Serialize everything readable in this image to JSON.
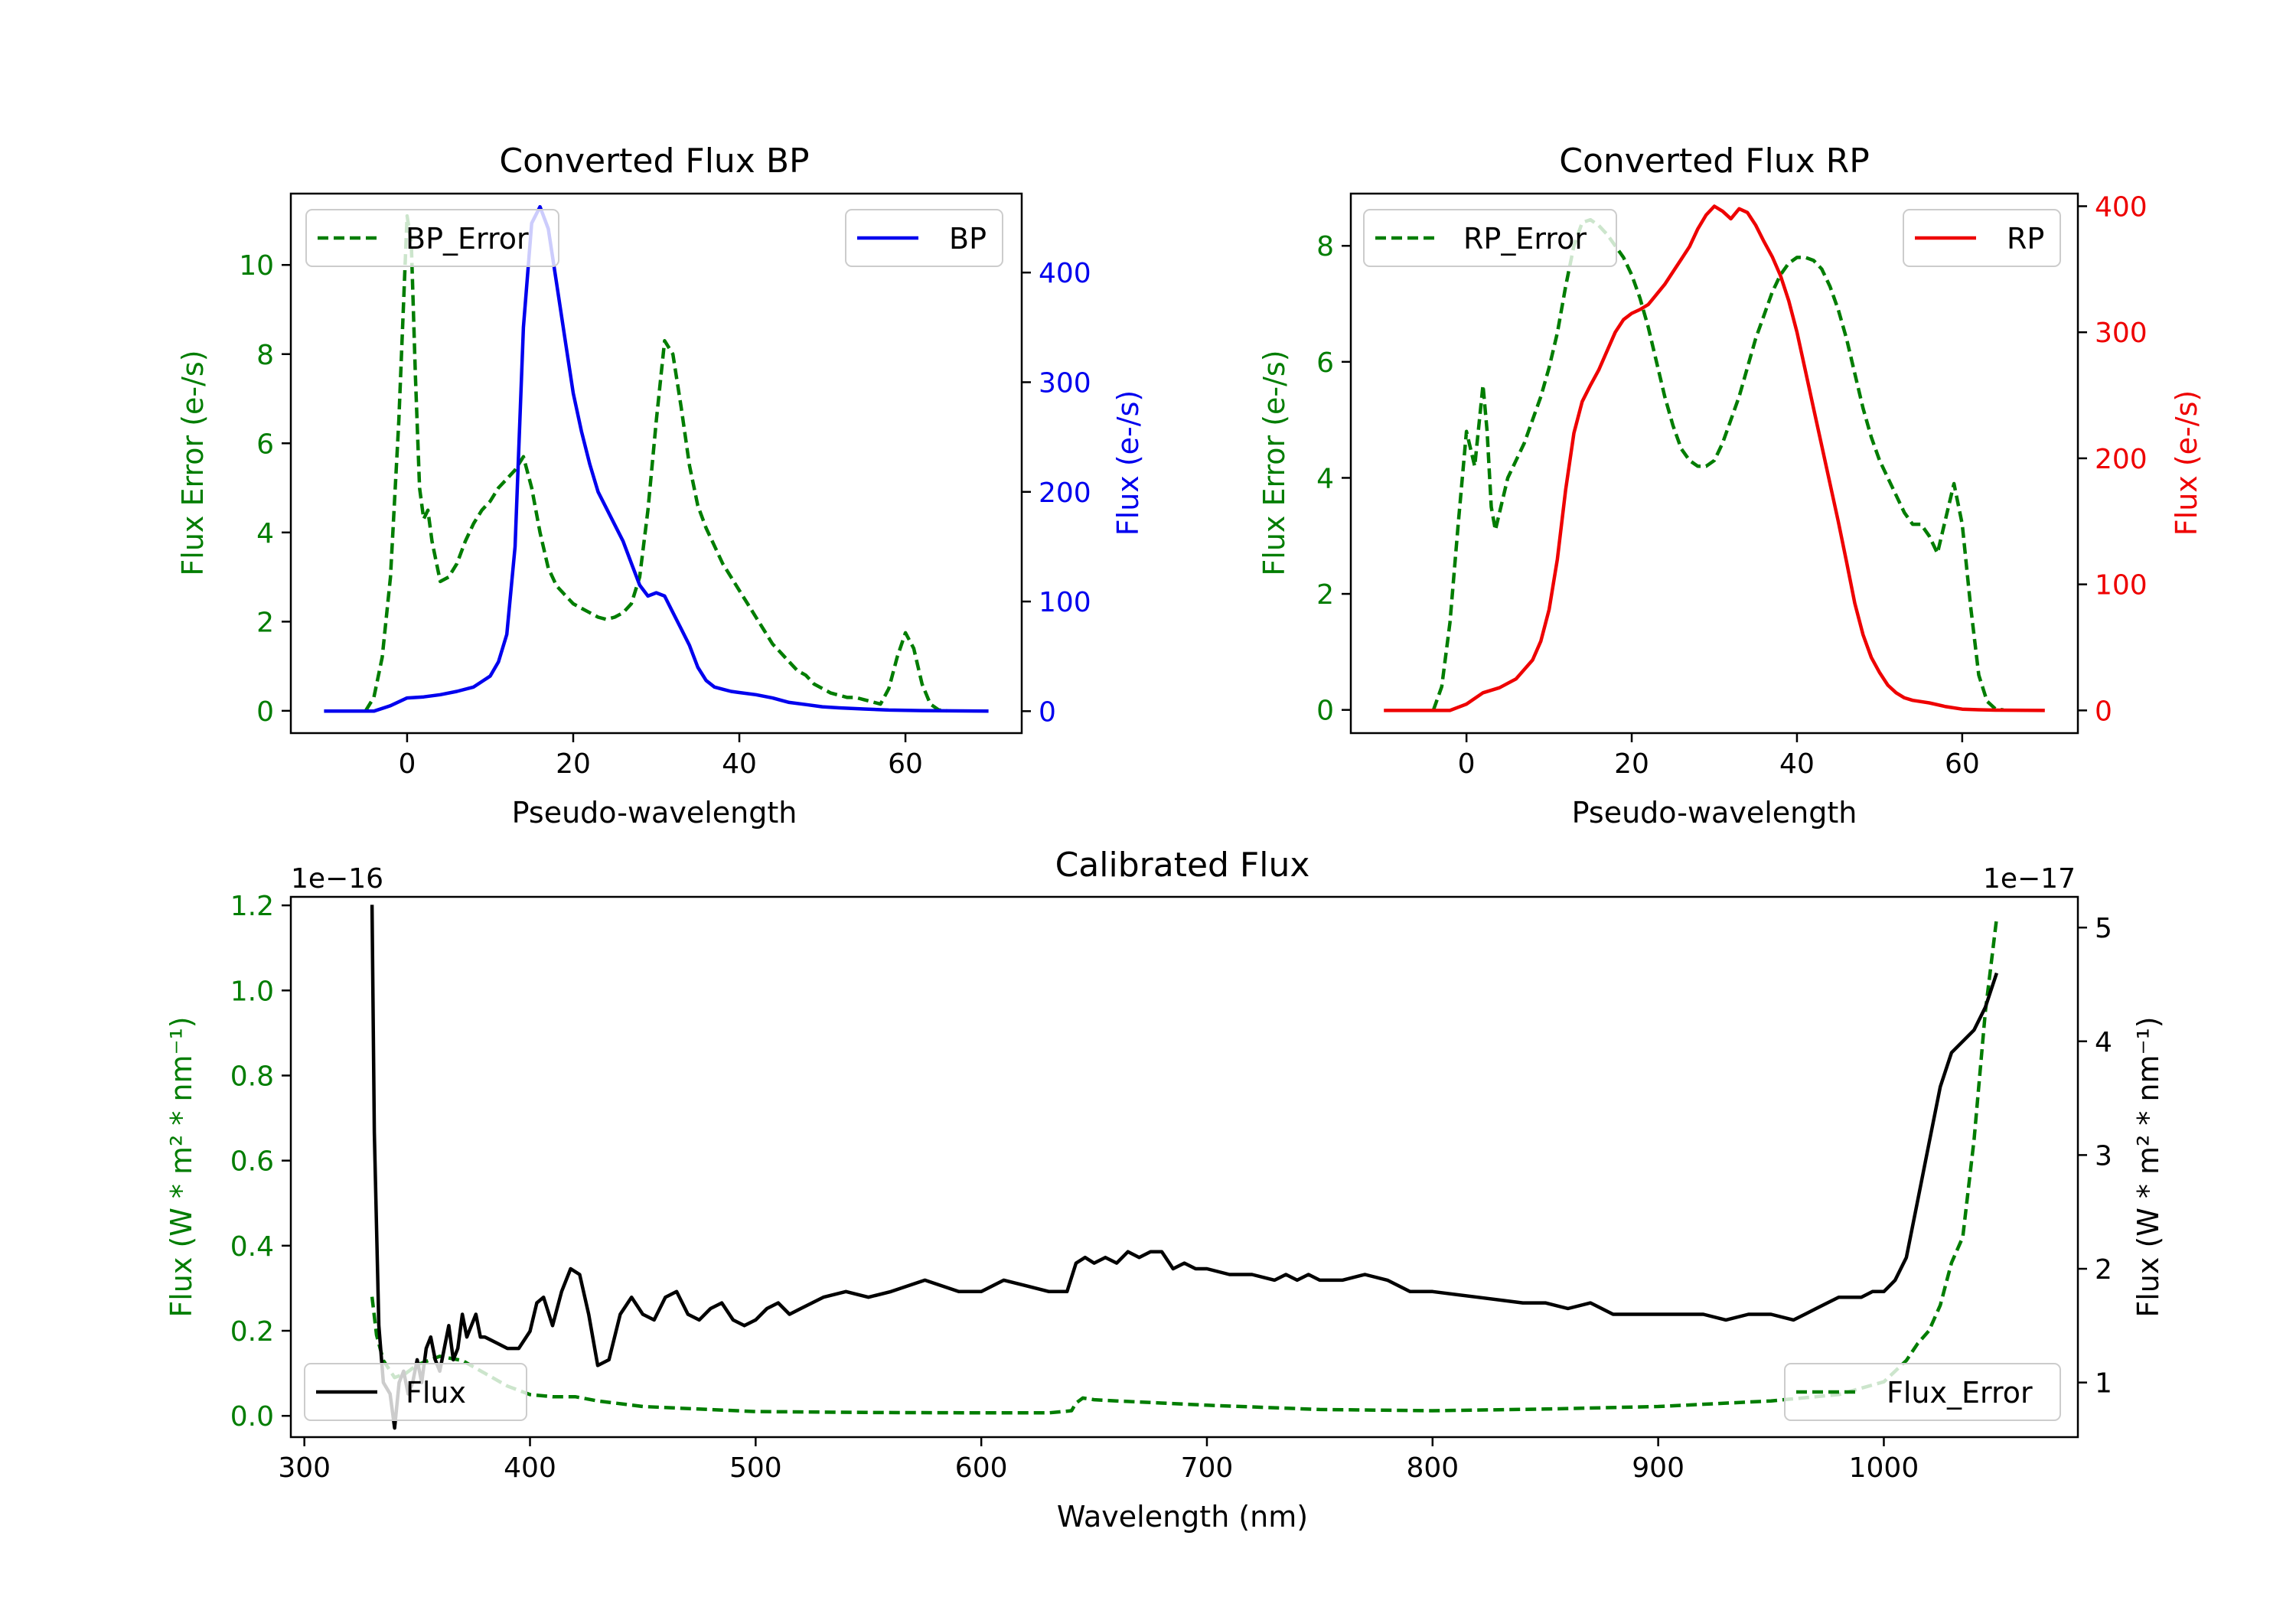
{
  "colors": {
    "green": "#007d00",
    "blue": "#0000ee",
    "red": "#ee0000",
    "black": "#000000"
  },
  "chart_data": [
    {
      "type": "line",
      "title": "Converted Flux BP",
      "xlabel": "Pseudo-wavelength",
      "ylabel_left": "Flux Error (e-/s)",
      "ylabel_right": "Flux (e-/s)",
      "xlim": [
        -14,
        74
      ],
      "ylim_left": [
        -0.5,
        11.6
      ],
      "ylim_right": [
        -20,
        472
      ],
      "xticks": [
        "0",
        "20",
        "40",
        "60"
      ],
      "yticks_left": [
        "0",
        "2",
        "4",
        "6",
        "8",
        "10"
      ],
      "yticks_right": [
        "0",
        "100",
        "200",
        "300",
        "400"
      ],
      "series": [
        {
          "name": "BP_Error",
          "axis": "left",
          "style": "dashed",
          "color": "green",
          "x": [
            -5,
            -4,
            -3,
            -2,
            -1,
            0,
            0.5,
            1,
            1.5,
            2,
            2.5,
            3,
            4,
            5,
            6,
            7,
            8,
            9,
            10,
            11,
            12,
            13,
            14,
            15,
            16,
            17,
            18,
            19,
            20,
            21,
            22,
            23,
            24,
            25,
            26,
            27,
            28,
            29,
            30,
            31,
            32,
            33,
            34,
            35,
            36,
            37,
            38,
            39,
            40,
            41,
            42,
            43,
            44,
            45,
            46,
            47,
            48,
            49,
            50,
            51,
            52,
            53,
            54,
            55,
            56,
            57,
            58,
            59,
            60,
            61,
            62,
            63,
            64,
            65
          ],
          "values": [
            0,
            0.3,
            1.2,
            3.0,
            6.5,
            11.1,
            10.5,
            7.5,
            5.0,
            4.3,
            4.5,
            3.8,
            2.9,
            3.0,
            3.3,
            3.8,
            4.2,
            4.5,
            4.7,
            5.0,
            5.2,
            5.4,
            5.7,
            5.0,
            4.0,
            3.2,
            2.8,
            2.6,
            2.4,
            2.3,
            2.2,
            2.1,
            2.05,
            2.1,
            2.2,
            2.4,
            3.0,
            4.5,
            6.5,
            8.3,
            8.0,
            6.8,
            5.5,
            4.6,
            4.1,
            3.7,
            3.3,
            3.0,
            2.7,
            2.4,
            2.1,
            1.8,
            1.5,
            1.3,
            1.1,
            0.9,
            0.8,
            0.6,
            0.5,
            0.4,
            0.35,
            0.3,
            0.3,
            0.25,
            0.2,
            0.15,
            0.5,
            1.2,
            1.75,
            1.4,
            0.6,
            0.15,
            0.02,
            0
          ]
        },
        {
          "name": "BP",
          "axis": "right",
          "style": "solid",
          "color": "blue",
          "x": [
            -10,
            -4,
            -2,
            0,
            2,
            4,
            6,
            8,
            10,
            11,
            12,
            13,
            14,
            15,
            16,
            17,
            18,
            19,
            20,
            21,
            22,
            23,
            24,
            25,
            26,
            27,
            28,
            29,
            30,
            31,
            32,
            33,
            34,
            35,
            36,
            37,
            38,
            39,
            40,
            42,
            44,
            46,
            48,
            50,
            52,
            55,
            58,
            62,
            70
          ],
          "values": [
            0,
            0,
            5,
            12,
            13,
            15,
            18,
            22,
            32,
            45,
            70,
            150,
            350,
            445,
            460,
            440,
            390,
            340,
            290,
            255,
            225,
            200,
            185,
            170,
            155,
            135,
            115,
            105,
            108,
            105,
            90,
            75,
            60,
            40,
            28,
            22,
            20,
            18,
            17,
            15,
            12,
            8,
            6,
            4,
            3,
            2,
            1,
            0.5,
            0
          ]
        }
      ],
      "legend": [
        {
          "label": "BP_Error",
          "placement": "upper left"
        },
        {
          "label": "BP",
          "placement": "upper right"
        }
      ]
    },
    {
      "type": "line",
      "title": "Converted Flux RP",
      "xlabel": "Pseudo-wavelength",
      "ylabel_left": "Flux Error (e-/s)",
      "ylabel_right": "Flux (e-/s)",
      "xlim": [
        -14,
        74
      ],
      "ylim_left": [
        -0.4,
        8.9
      ],
      "ylim_right": [
        -18,
        410
      ],
      "xticks": [
        "0",
        "20",
        "40",
        "60"
      ],
      "yticks_left": [
        "0",
        "2",
        "4",
        "6",
        "8"
      ],
      "yticks_right": [
        "0",
        "100",
        "200",
        "300",
        "400"
      ],
      "series": [
        {
          "name": "RP_Error",
          "axis": "left",
          "style": "dashed",
          "color": "green",
          "x": [
            -4,
            -3,
            -2,
            -1,
            0,
            0.5,
            1,
            1.5,
            2,
            2.5,
            3,
            3.5,
            4,
            5,
            6,
            7,
            8,
            9,
            10,
            11,
            12,
            13,
            14,
            15,
            16,
            17,
            18,
            19,
            20,
            21,
            22,
            23,
            24,
            25,
            26,
            27,
            28,
            29,
            30,
            31,
            32,
            33,
            34,
            35,
            36,
            37,
            38,
            39,
            40,
            41,
            42,
            43,
            44,
            45,
            46,
            47,
            48,
            49,
            50,
            51,
            52,
            53,
            54,
            55,
            56,
            57,
            58,
            59,
            60,
            61,
            62,
            63,
            64,
            65
          ],
          "values": [
            0,
            0.4,
            1.5,
            3.2,
            4.8,
            4.5,
            4.2,
            4.9,
            5.6,
            4.8,
            3.5,
            3.1,
            3.4,
            4.0,
            4.3,
            4.6,
            5.0,
            5.4,
            5.9,
            6.5,
            7.3,
            8.0,
            8.4,
            8.45,
            8.35,
            8.2,
            8.0,
            7.8,
            7.5,
            7.1,
            6.6,
            6.0,
            5.4,
            4.9,
            4.5,
            4.3,
            4.2,
            4.2,
            4.3,
            4.6,
            5.0,
            5.4,
            5.9,
            6.4,
            6.8,
            7.2,
            7.5,
            7.7,
            7.8,
            7.8,
            7.75,
            7.6,
            7.3,
            6.9,
            6.4,
            5.8,
            5.2,
            4.7,
            4.3,
            4.0,
            3.7,
            3.4,
            3.2,
            3.2,
            3.0,
            2.7,
            3.3,
            3.9,
            3.2,
            1.8,
            0.6,
            0.15,
            0.02,
            0
          ]
        },
        {
          "name": "RP",
          "axis": "right",
          "style": "solid",
          "color": "red",
          "x": [
            -10,
            -2,
            0,
            2,
            4,
            6,
            8,
            9,
            10,
            11,
            12,
            13,
            14,
            15,
            16,
            17,
            18,
            19,
            20,
            21,
            22,
            23,
            24,
            25,
            26,
            27,
            28,
            29,
            30,
            31,
            32,
            33,
            34,
            35,
            36,
            37,
            38,
            39,
            40,
            41,
            42,
            43,
            44,
            45,
            46,
            47,
            48,
            49,
            50,
            51,
            52,
            53,
            54,
            56,
            58,
            60,
            62,
            64,
            70
          ],
          "values": [
            0,
            0,
            5,
            14,
            18,
            25,
            40,
            55,
            80,
            120,
            175,
            220,
            245,
            258,
            270,
            285,
            300,
            310,
            315,
            318,
            322,
            330,
            338,
            348,
            358,
            368,
            382,
            393,
            400,
            396,
            390,
            398,
            395,
            385,
            372,
            360,
            345,
            325,
            300,
            270,
            240,
            210,
            180,
            150,
            118,
            85,
            60,
            42,
            30,
            20,
            14,
            10,
            8,
            6,
            3,
            1,
            0.5,
            0.2,
            0
          ]
        }
      ],
      "legend": [
        {
          "label": "RP_Error",
          "placement": "upper left"
        },
        {
          "label": "RP",
          "placement": "upper right"
        }
      ]
    },
    {
      "type": "line",
      "title": "Calibrated Flux",
      "xlabel": "Wavelength (nm)",
      "ylabel_left": "Flux (W * m² * nm⁻¹)",
      "ylabel_right": "Flux (W * m² * nm⁻¹)",
      "offset_left": "1e−16",
      "offset_right": "1e−17",
      "xlim": [
        294,
        1086
      ],
      "ylim_left": [
        -0.05,
        1.22
      ],
      "ylim_right": [
        0.52,
        5.27
      ],
      "xticks": [
        "300",
        "400",
        "500",
        "600",
        "700",
        "800",
        "900",
        "1000"
      ],
      "yticks_left": [
        "0.0",
        "0.2",
        "0.4",
        "0.6",
        "0.8",
        "1.0",
        "1.2"
      ],
      "yticks_right": [
        "1",
        "2",
        "3",
        "4",
        "5"
      ],
      "series": [
        {
          "name": "Flux_Error",
          "axis": "left",
          "style": "dashed",
          "color": "green",
          "x": [
            330,
            332,
            335,
            340,
            345,
            350,
            360,
            370,
            380,
            390,
            400,
            410,
            420,
            430,
            450,
            500,
            550,
            600,
            630,
            640,
            642,
            645,
            650,
            660,
            680,
            700,
            750,
            800,
            850,
            900,
            950,
            980,
            1000,
            1010,
            1015,
            1020,
            1025,
            1030,
            1035,
            1040,
            1045,
            1050
          ],
          "values": [
            0.28,
            0.19,
            0.13,
            0.09,
            0.1,
            0.12,
            0.14,
            0.13,
            0.1,
            0.07,
            0.05,
            0.045,
            0.045,
            0.035,
            0.022,
            0.01,
            0.008,
            0.007,
            0.007,
            0.012,
            0.03,
            0.042,
            0.038,
            0.035,
            0.03,
            0.025,
            0.015,
            0.012,
            0.016,
            0.022,
            0.035,
            0.05,
            0.08,
            0.13,
            0.17,
            0.2,
            0.26,
            0.36,
            0.42,
            0.65,
            0.95,
            1.17
          ]
        },
        {
          "name": "Flux",
          "axis": "right",
          "style": "solid",
          "color": "black",
          "x": [
            330,
            331,
            333,
            335,
            338,
            340,
            342,
            344,
            346,
            348,
            350,
            352,
            354,
            356,
            358,
            360,
            362,
            364,
            366,
            368,
            370,
            372,
            374,
            376,
            378,
            380,
            385,
            390,
            395,
            400,
            403,
            406,
            410,
            414,
            418,
            422,
            426,
            430,
            435,
            440,
            445,
            450,
            455,
            460,
            465,
            470,
            475,
            480,
            485,
            490,
            495,
            500,
            505,
            510,
            515,
            520,
            530,
            540,
            550,
            560,
            575,
            590,
            600,
            610,
            620,
            630,
            638,
            642,
            646,
            650,
            655,
            660,
            665,
            670,
            675,
            680,
            685,
            690,
            695,
            700,
            710,
            720,
            730,
            735,
            740,
            745,
            750,
            760,
            770,
            780,
            790,
            800,
            820,
            840,
            850,
            860,
            870,
            880,
            900,
            920,
            930,
            940,
            950,
            960,
            965,
            970,
            975,
            980,
            985,
            990,
            995,
            1000,
            1005,
            1010,
            1015,
            1020,
            1025,
            1030,
            1035,
            1040,
            1045,
            1050
          ],
          "values": [
            5.2,
            3.2,
            1.5,
            1.0,
            0.9,
            0.6,
            1.0,
            1.1,
            0.9,
            1.0,
            1.2,
            1.0,
            1.3,
            1.4,
            1.2,
            1.1,
            1.3,
            1.5,
            1.2,
            1.3,
            1.6,
            1.4,
            1.5,
            1.6,
            1.4,
            1.4,
            1.35,
            1.3,
            1.3,
            1.45,
            1.7,
            1.75,
            1.5,
            1.8,
            2.0,
            1.95,
            1.6,
            1.15,
            1.2,
            1.6,
            1.75,
            1.6,
            1.55,
            1.75,
            1.8,
            1.6,
            1.55,
            1.65,
            1.7,
            1.55,
            1.5,
            1.55,
            1.65,
            1.7,
            1.6,
            1.65,
            1.75,
            1.8,
            1.75,
            1.8,
            1.9,
            1.8,
            1.8,
            1.9,
            1.85,
            1.8,
            1.8,
            2.05,
            2.1,
            2.05,
            2.1,
            2.05,
            2.15,
            2.1,
            2.15,
            2.15,
            2.0,
            2.05,
            2.0,
            2.0,
            1.95,
            1.95,
            1.9,
            1.95,
            1.9,
            1.95,
            1.9,
            1.9,
            1.95,
            1.9,
            1.8,
            1.8,
            1.75,
            1.7,
            1.7,
            1.65,
            1.7,
            1.6,
            1.6,
            1.6,
            1.55,
            1.6,
            1.6,
            1.55,
            1.6,
            1.65,
            1.7,
            1.75,
            1.75,
            1.75,
            1.8,
            1.8,
            1.9,
            2.1,
            2.6,
            3.1,
            3.6,
            3.9,
            4.0,
            4.1,
            4.3,
            4.6
          ]
        }
      ],
      "legend": [
        {
          "label": "Flux",
          "placement": "lower left"
        },
        {
          "label": "Flux_Error",
          "placement": "lower right"
        }
      ]
    }
  ]
}
